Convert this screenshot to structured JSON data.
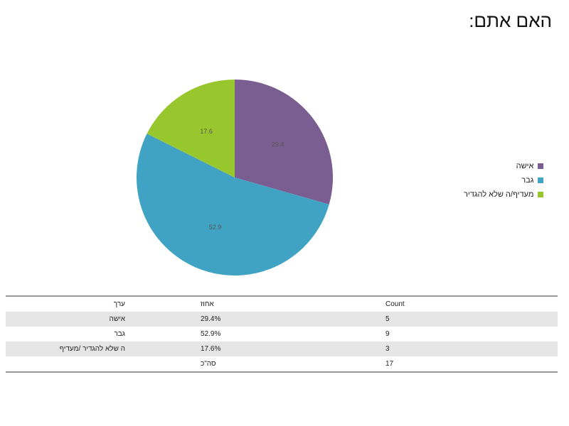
{
  "title": "האם אתם:",
  "chart_data": {
    "type": "pie",
    "categories": [
      "אישה",
      "גבר",
      "מעדיף/ה שלא להגדיר"
    ],
    "values": [
      29.4,
      52.9,
      17.6
    ],
    "labels": [
      "29.4",
      "52.9",
      "17.6"
    ],
    "colors": [
      "#7b5e91",
      "#40a3c4",
      "#97c72d"
    ],
    "legend_position": "right"
  },
  "legend": [
    "אישה",
    "גבר",
    "מעדיף/ה שלא להגדיר"
  ],
  "table": {
    "headers": {
      "value": "ערך",
      "percent": "אחוז",
      "count": "Count"
    },
    "rows": [
      {
        "value": "אישה",
        "percent": "29.4%",
        "count": "5"
      },
      {
        "value": "גבר",
        "percent": "52.9%",
        "count": "9"
      },
      {
        "value": "ה שלא להגדיר /מעדיף",
        "percent": "17.6%",
        "count": "3"
      }
    ],
    "total": {
      "label": "סה\"כ",
      "count": "17"
    }
  }
}
